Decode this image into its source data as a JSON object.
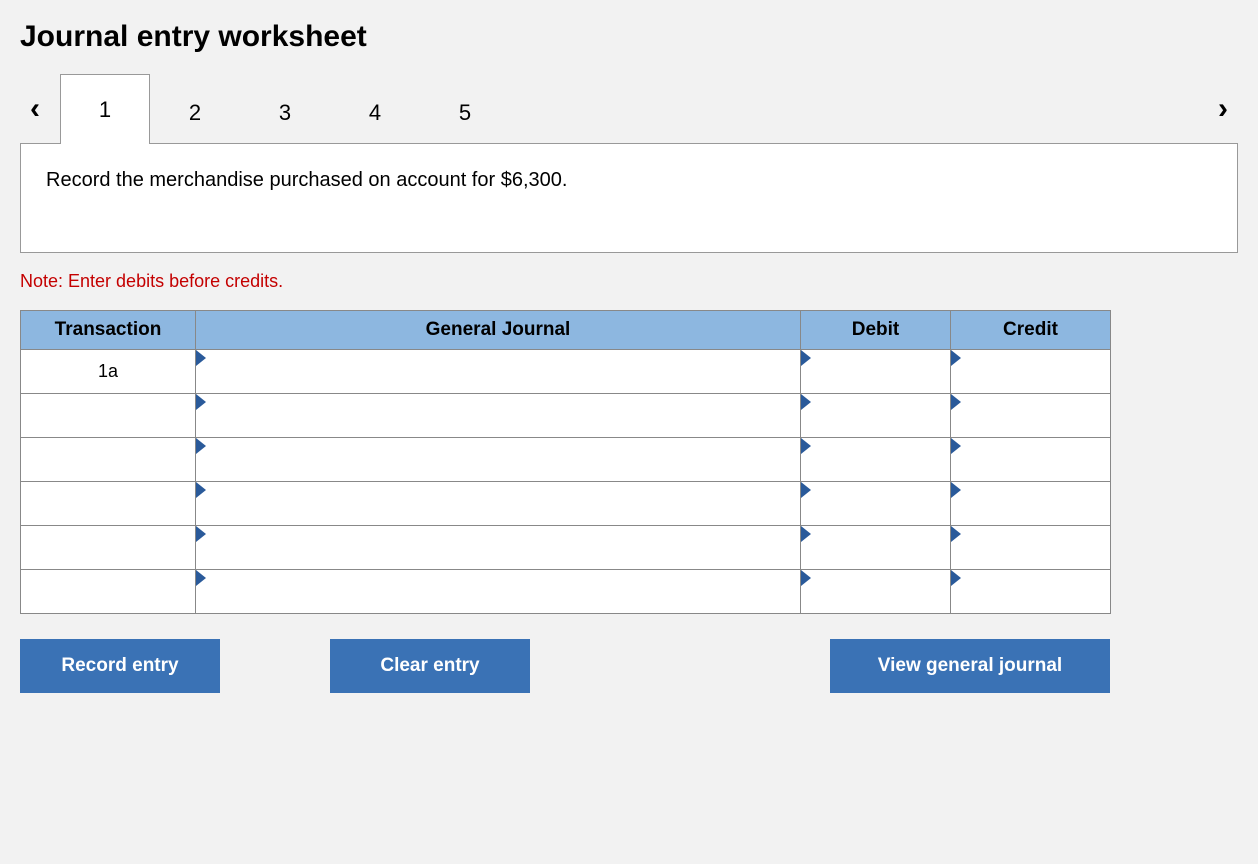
{
  "title": "Journal entry worksheet",
  "nav": {
    "prev_icon": "‹",
    "next_icon": "›",
    "tabs": [
      "1",
      "2",
      "3",
      "4",
      "5"
    ],
    "active_index": 0
  },
  "prompt": "Record the merchandise purchased on account for $6,300.",
  "note": "Note: Enter debits before credits.",
  "table": {
    "headers": {
      "transaction": "Transaction",
      "general_journal": "General Journal",
      "debit": "Debit",
      "credit": "Credit"
    },
    "header_bg": "#8db7e0",
    "triangle_color": "#2a5a9a",
    "columns": {
      "transaction_width": 175,
      "general_journal_width": 605,
      "debit_width": 150,
      "credit_width": 160
    },
    "rows": [
      {
        "transaction": "1a",
        "general_journal": "",
        "debit": "",
        "credit": ""
      },
      {
        "transaction": "",
        "general_journal": "",
        "debit": "",
        "credit": ""
      },
      {
        "transaction": "",
        "general_journal": "",
        "debit": "",
        "credit": ""
      },
      {
        "transaction": "",
        "general_journal": "",
        "debit": "",
        "credit": ""
      },
      {
        "transaction": "",
        "general_journal": "",
        "debit": "",
        "credit": ""
      },
      {
        "transaction": "",
        "general_journal": "",
        "debit": "",
        "credit": ""
      }
    ]
  },
  "buttons": {
    "record": "Record entry",
    "clear": "Clear entry",
    "view": "View general journal",
    "bg": "#3a72b5"
  }
}
